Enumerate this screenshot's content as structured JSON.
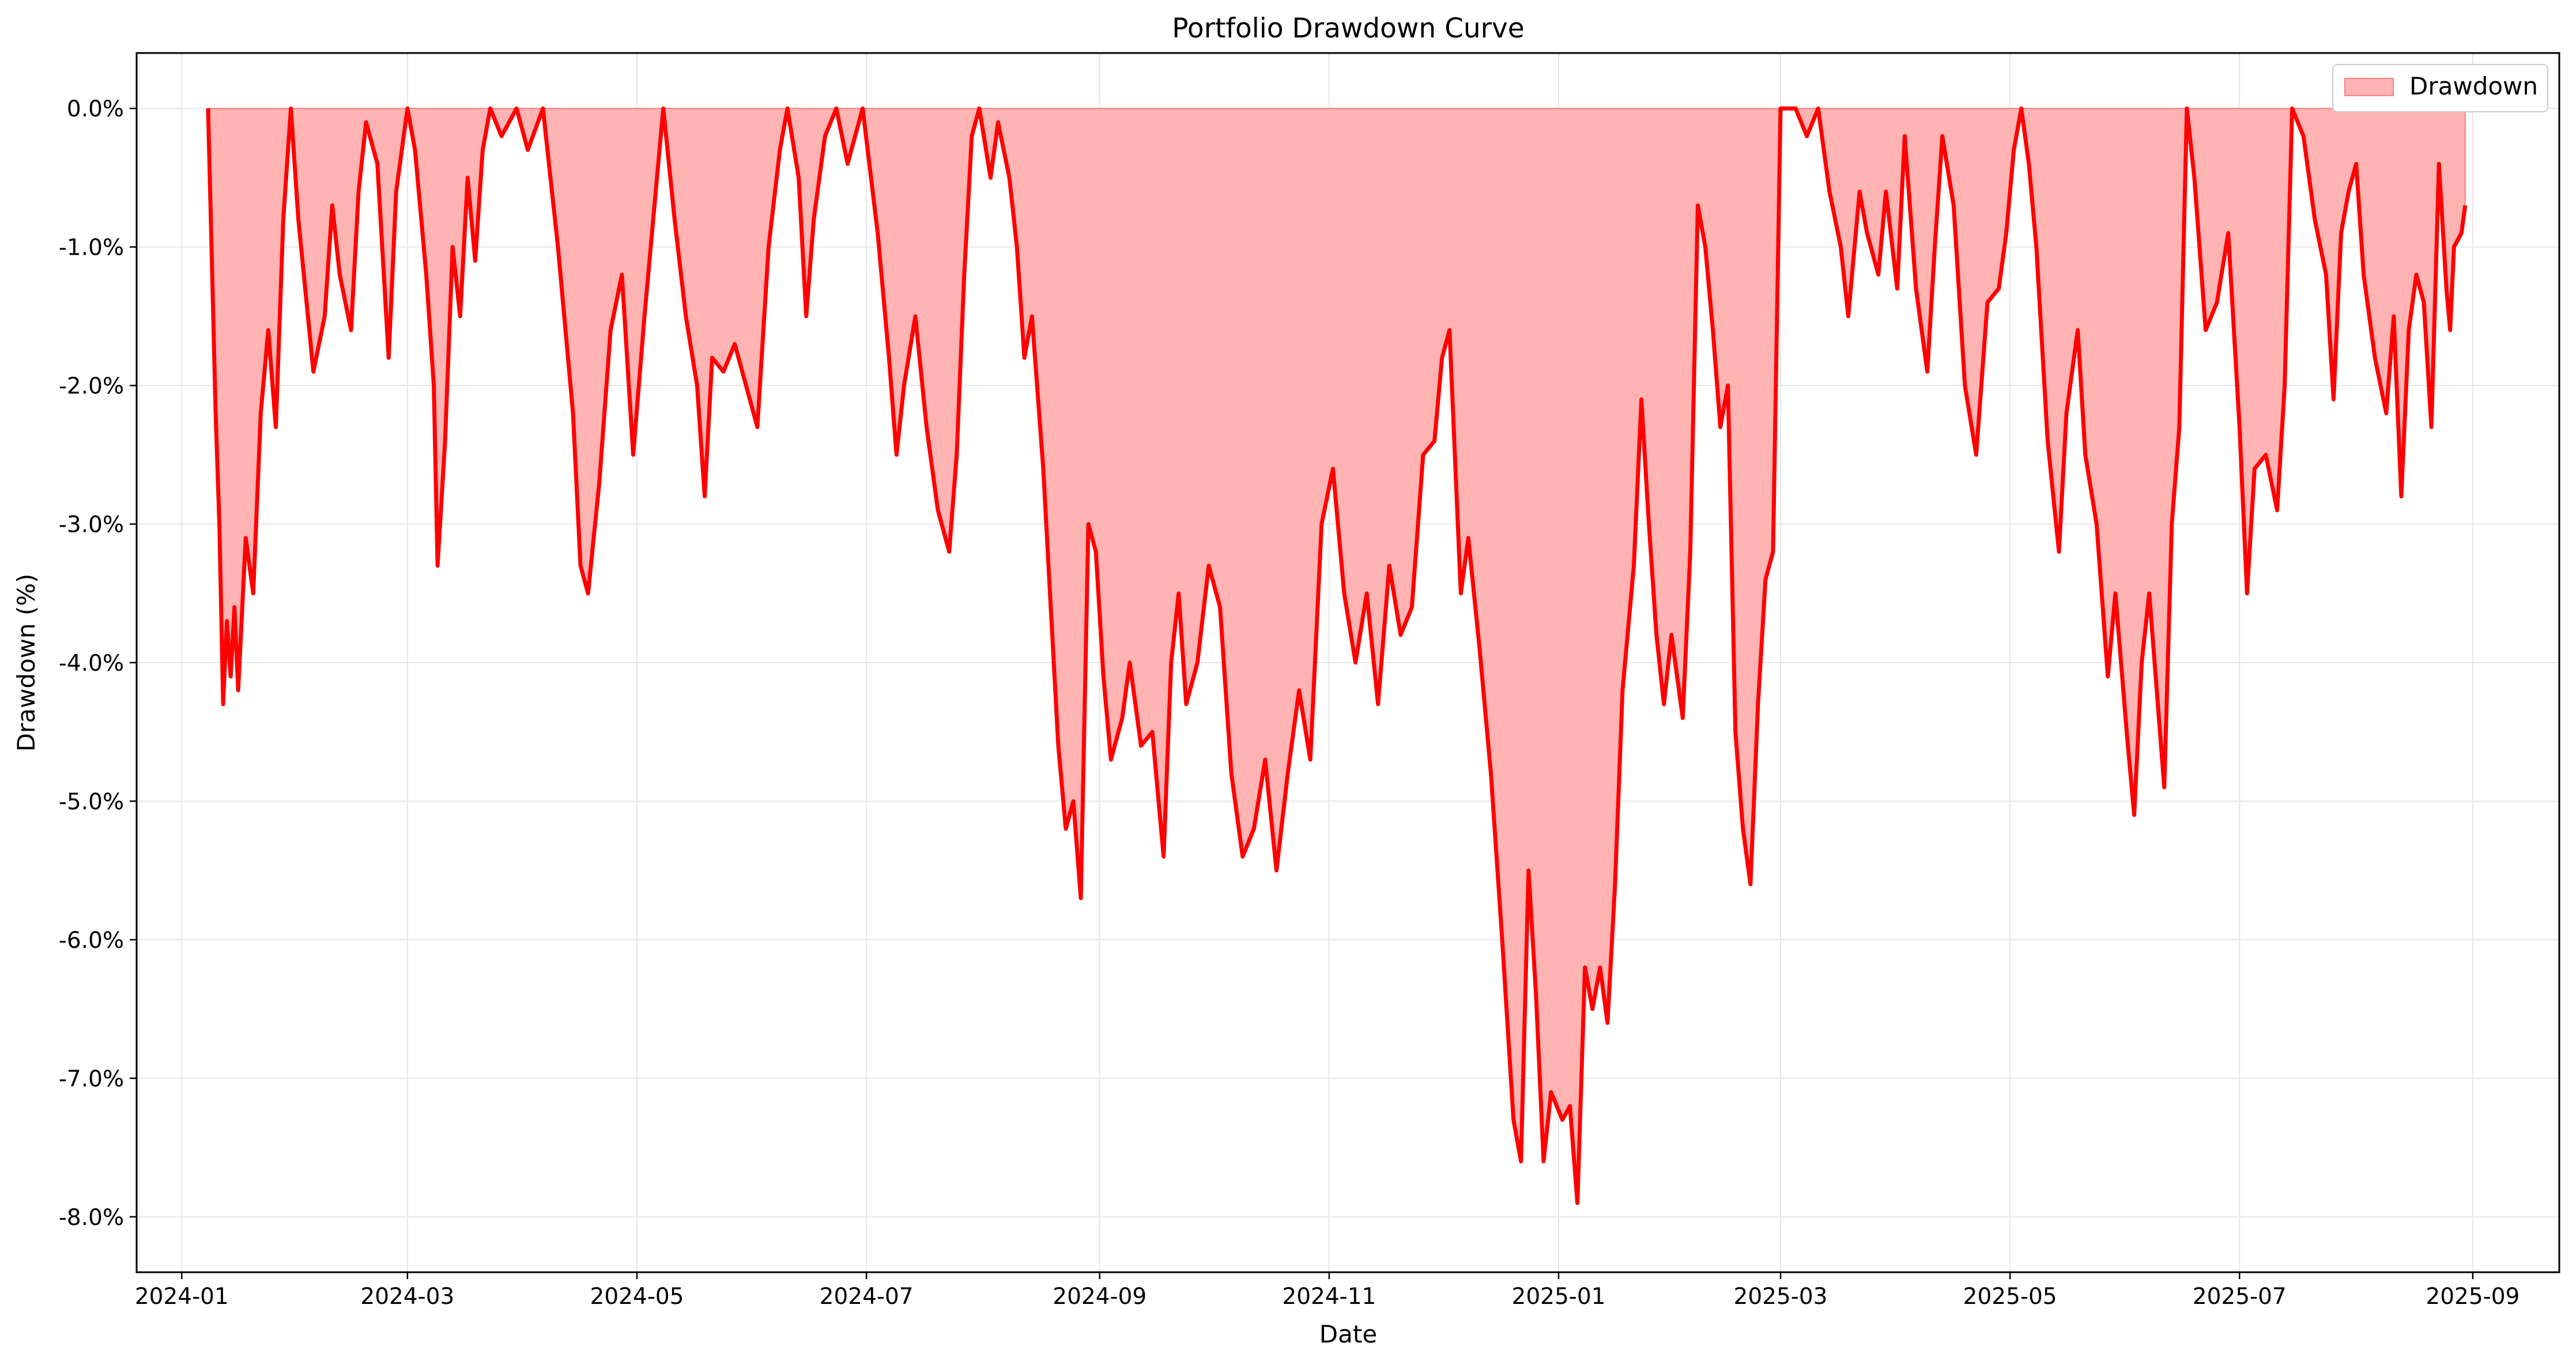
{
  "chart_data": {
    "type": "area",
    "title": "Portfolio Drawdown Curve",
    "xlabel": "Date",
    "ylabel": "Drawdown (%)",
    "grid": true,
    "legend": {
      "placement": "top-right",
      "entries": [
        "Drawdown"
      ]
    },
    "colors": {
      "line": "#ff0000",
      "fill": "#ffb3b3",
      "legend_patch": "#ffb3b3",
      "legend_edge": "#ff7f7f",
      "grid": "#e6e6e6"
    },
    "xlim": [
      "2023-12-20",
      "2025-09-24"
    ],
    "ylim": [
      -8.4,
      0.4
    ],
    "x_ticks": [
      {
        "date": "2024-01-01",
        "label": "2024-01"
      },
      {
        "date": "2024-03-01",
        "label": "2024-03"
      },
      {
        "date": "2024-05-01",
        "label": "2024-05"
      },
      {
        "date": "2024-07-01",
        "label": "2024-07"
      },
      {
        "date": "2024-09-01",
        "label": "2024-09"
      },
      {
        "date": "2024-11-01",
        "label": "2024-11"
      },
      {
        "date": "2025-01-01",
        "label": "2025-01"
      },
      {
        "date": "2025-03-01",
        "label": "2025-03"
      },
      {
        "date": "2025-05-01",
        "label": "2025-05"
      },
      {
        "date": "2025-07-01",
        "label": "2025-07"
      },
      {
        "date": "2025-09-01",
        "label": "2025-09"
      }
    ],
    "y_ticks": [
      {
        "value": 0,
        "label": "0.0%"
      },
      {
        "value": -1,
        "label": "-1.0%"
      },
      {
        "value": -2,
        "label": "-2.0%"
      },
      {
        "value": -3,
        "label": "-3.0%"
      },
      {
        "value": -4,
        "label": "-4.0%"
      },
      {
        "value": -5,
        "label": "-5.0%"
      },
      {
        "value": -6,
        "label": "-6.0%"
      },
      {
        "value": -7,
        "label": "-7.0%"
      },
      {
        "value": -8,
        "label": "-8.0%"
      }
    ],
    "series": [
      {
        "name": "Drawdown",
        "points": [
          [
            "2024-01-08",
            0.0
          ],
          [
            "2024-01-10",
            -2.2
          ],
          [
            "2024-01-11",
            -3.0
          ],
          [
            "2024-01-12",
            -4.3
          ],
          [
            "2024-01-13",
            -3.7
          ],
          [
            "2024-01-14",
            -4.1
          ],
          [
            "2024-01-15",
            -3.6
          ],
          [
            "2024-01-16",
            -4.2
          ],
          [
            "2024-01-18",
            -3.1
          ],
          [
            "2024-01-20",
            -3.5
          ],
          [
            "2024-01-22",
            -2.2
          ],
          [
            "2024-01-24",
            -1.6
          ],
          [
            "2024-01-26",
            -2.3
          ],
          [
            "2024-01-28",
            -0.8
          ],
          [
            "2024-01-30",
            0.0
          ],
          [
            "2024-02-01",
            -0.8
          ],
          [
            "2024-02-05",
            -1.9
          ],
          [
            "2024-02-08",
            -1.5
          ],
          [
            "2024-02-10",
            -0.7
          ],
          [
            "2024-02-12",
            -1.2
          ],
          [
            "2024-02-15",
            -1.6
          ],
          [
            "2024-02-17",
            -0.6
          ],
          [
            "2024-02-19",
            -0.1
          ],
          [
            "2024-02-22",
            -0.4
          ],
          [
            "2024-02-25",
            -1.8
          ],
          [
            "2024-02-27",
            -0.6
          ],
          [
            "2024-03-01",
            0.0
          ],
          [
            "2024-03-03",
            -0.3
          ],
          [
            "2024-03-06",
            -1.2
          ],
          [
            "2024-03-08",
            -2.0
          ],
          [
            "2024-03-09",
            -3.3
          ],
          [
            "2024-03-11",
            -2.4
          ],
          [
            "2024-03-13",
            -1.0
          ],
          [
            "2024-03-15",
            -1.5
          ],
          [
            "2024-03-17",
            -0.5
          ],
          [
            "2024-03-19",
            -1.1
          ],
          [
            "2024-03-21",
            -0.3
          ],
          [
            "2024-03-23",
            0.0
          ],
          [
            "2024-03-26",
            -0.2
          ],
          [
            "2024-03-30",
            0.0
          ],
          [
            "2024-04-02",
            -0.3
          ],
          [
            "2024-04-06",
            0.0
          ],
          [
            "2024-04-10",
            -1.0
          ],
          [
            "2024-04-14",
            -2.2
          ],
          [
            "2024-04-16",
            -3.3
          ],
          [
            "2024-04-18",
            -3.5
          ],
          [
            "2024-04-21",
            -2.7
          ],
          [
            "2024-04-24",
            -1.6
          ],
          [
            "2024-04-27",
            -1.2
          ],
          [
            "2024-04-30",
            -2.5
          ],
          [
            "2024-05-03",
            -1.5
          ],
          [
            "2024-05-06",
            -0.6
          ],
          [
            "2024-05-08",
            0.0
          ],
          [
            "2024-05-11",
            -0.8
          ],
          [
            "2024-05-14",
            -1.5
          ],
          [
            "2024-05-17",
            -2.0
          ],
          [
            "2024-05-19",
            -2.8
          ],
          [
            "2024-05-21",
            -1.8
          ],
          [
            "2024-05-24",
            -1.9
          ],
          [
            "2024-05-27",
            -1.7
          ],
          [
            "2024-05-30",
            -2.0
          ],
          [
            "2024-06-02",
            -2.3
          ],
          [
            "2024-06-05",
            -1.0
          ],
          [
            "2024-06-08",
            -0.3
          ],
          [
            "2024-06-10",
            0.0
          ],
          [
            "2024-06-13",
            -0.5
          ],
          [
            "2024-06-15",
            -1.5
          ],
          [
            "2024-06-17",
            -0.8
          ],
          [
            "2024-06-20",
            -0.2
          ],
          [
            "2024-06-23",
            0.0
          ],
          [
            "2024-06-26",
            -0.4
          ],
          [
            "2024-06-30",
            0.0
          ],
          [
            "2024-07-04",
            -0.9
          ],
          [
            "2024-07-07",
            -1.8
          ],
          [
            "2024-07-09",
            -2.5
          ],
          [
            "2024-07-11",
            -2.0
          ],
          [
            "2024-07-14",
            -1.5
          ],
          [
            "2024-07-17",
            -2.3
          ],
          [
            "2024-07-20",
            -2.9
          ],
          [
            "2024-07-23",
            -3.2
          ],
          [
            "2024-07-25",
            -2.5
          ],
          [
            "2024-07-27",
            -1.2
          ],
          [
            "2024-07-29",
            -0.2
          ],
          [
            "2024-07-31",
            0.0
          ],
          [
            "2024-08-03",
            -0.5
          ],
          [
            "2024-08-05",
            -0.1
          ],
          [
            "2024-08-08",
            -0.5
          ],
          [
            "2024-08-10",
            -1.0
          ],
          [
            "2024-08-12",
            -1.8
          ],
          [
            "2024-08-14",
            -1.5
          ],
          [
            "2024-08-17",
            -2.6
          ],
          [
            "2024-08-19",
            -3.6
          ],
          [
            "2024-08-21",
            -4.6
          ],
          [
            "2024-08-23",
            -5.2
          ],
          [
            "2024-08-25",
            -5.0
          ],
          [
            "2024-08-27",
            -5.7
          ],
          [
            "2024-08-29",
            -3.0
          ],
          [
            "2024-08-31",
            -3.2
          ],
          [
            "2024-09-02",
            -4.1
          ],
          [
            "2024-09-04",
            -4.7
          ],
          [
            "2024-09-07",
            -4.4
          ],
          [
            "2024-09-09",
            -4.0
          ],
          [
            "2024-09-12",
            -4.6
          ],
          [
            "2024-09-15",
            -4.5
          ],
          [
            "2024-09-18",
            -5.4
          ],
          [
            "2024-09-20",
            -4.0
          ],
          [
            "2024-09-22",
            -3.5
          ],
          [
            "2024-09-24",
            -4.3
          ],
          [
            "2024-09-27",
            -4.0
          ],
          [
            "2024-09-30",
            -3.3
          ],
          [
            "2024-10-03",
            -3.6
          ],
          [
            "2024-10-06",
            -4.8
          ],
          [
            "2024-10-09",
            -5.4
          ],
          [
            "2024-10-12",
            -5.2
          ],
          [
            "2024-10-15",
            -4.7
          ],
          [
            "2024-10-18",
            -5.5
          ],
          [
            "2024-10-21",
            -4.8
          ],
          [
            "2024-10-24",
            -4.2
          ],
          [
            "2024-10-27",
            -4.7
          ],
          [
            "2024-10-30",
            -3.0
          ],
          [
            "2024-11-02",
            -2.6
          ],
          [
            "2024-11-05",
            -3.5
          ],
          [
            "2024-11-08",
            -4.0
          ],
          [
            "2024-11-11",
            -3.5
          ],
          [
            "2024-11-14",
            -4.3
          ],
          [
            "2024-11-17",
            -3.3
          ],
          [
            "2024-11-20",
            -3.8
          ],
          [
            "2024-11-23",
            -3.6
          ],
          [
            "2024-11-26",
            -2.5
          ],
          [
            "2024-11-29",
            -2.4
          ],
          [
            "2024-12-01",
            -1.8
          ],
          [
            "2024-12-03",
            -1.6
          ],
          [
            "2024-12-06",
            -3.5
          ],
          [
            "2024-12-08",
            -3.1
          ],
          [
            "2024-12-11",
            -3.9
          ],
          [
            "2024-12-14",
            -4.8
          ],
          [
            "2024-12-17",
            -6.0
          ],
          [
            "2024-12-20",
            -7.3
          ],
          [
            "2024-12-22",
            -7.6
          ],
          [
            "2024-12-24",
            -5.5
          ],
          [
            "2024-12-26",
            -6.4
          ],
          [
            "2024-12-28",
            -7.6
          ],
          [
            "2024-12-30",
            -7.1
          ],
          [
            "2025-01-02",
            -7.3
          ],
          [
            "2025-01-04",
            -7.2
          ],
          [
            "2025-01-06",
            -7.9
          ],
          [
            "2025-01-08",
            -6.2
          ],
          [
            "2025-01-10",
            -6.5
          ],
          [
            "2025-01-12",
            -6.2
          ],
          [
            "2025-01-14",
            -6.6
          ],
          [
            "2025-01-16",
            -5.6
          ],
          [
            "2025-01-18",
            -4.2
          ],
          [
            "2025-01-21",
            -3.3
          ],
          [
            "2025-01-23",
            -2.1
          ],
          [
            "2025-01-25",
            -3.0
          ],
          [
            "2025-01-27",
            -3.8
          ],
          [
            "2025-01-29",
            -4.3
          ],
          [
            "2025-01-31",
            -3.8
          ],
          [
            "2025-02-03",
            -4.4
          ],
          [
            "2025-02-05",
            -3.2
          ],
          [
            "2025-02-07",
            -0.7
          ],
          [
            "2025-02-09",
            -1.0
          ],
          [
            "2025-02-11",
            -1.6
          ],
          [
            "2025-02-13",
            -2.3
          ],
          [
            "2025-02-15",
            -2.0
          ],
          [
            "2025-02-17",
            -4.5
          ],
          [
            "2025-02-19",
            -5.2
          ],
          [
            "2025-02-21",
            -5.6
          ],
          [
            "2025-02-23",
            -4.3
          ],
          [
            "2025-02-25",
            -3.4
          ],
          [
            "2025-02-27",
            -3.2
          ],
          [
            "2025-03-01",
            0.0
          ],
          [
            "2025-03-05",
            0.0
          ],
          [
            "2025-03-08",
            -0.2
          ],
          [
            "2025-03-11",
            0.0
          ],
          [
            "2025-03-14",
            -0.6
          ],
          [
            "2025-03-17",
            -1.0
          ],
          [
            "2025-03-19",
            -1.5
          ],
          [
            "2025-03-22",
            -0.6
          ],
          [
            "2025-03-24",
            -0.9
          ],
          [
            "2025-03-27",
            -1.2
          ],
          [
            "2025-03-29",
            -0.6
          ],
          [
            "2025-04-01",
            -1.3
          ],
          [
            "2025-04-03",
            -0.2
          ],
          [
            "2025-04-06",
            -1.3
          ],
          [
            "2025-04-09",
            -1.9
          ],
          [
            "2025-04-11",
            -1.0
          ],
          [
            "2025-04-13",
            -0.2
          ],
          [
            "2025-04-16",
            -0.7
          ],
          [
            "2025-04-19",
            -2.0
          ],
          [
            "2025-04-22",
            -2.5
          ],
          [
            "2025-04-25",
            -1.4
          ],
          [
            "2025-04-28",
            -1.3
          ],
          [
            "2025-04-30",
            -0.9
          ],
          [
            "2025-05-02",
            -0.3
          ],
          [
            "2025-05-04",
            0.0
          ],
          [
            "2025-05-06",
            -0.4
          ],
          [
            "2025-05-08",
            -1.0
          ],
          [
            "2025-05-11",
            -2.4
          ],
          [
            "2025-05-14",
            -3.2
          ],
          [
            "2025-05-16",
            -2.2
          ],
          [
            "2025-05-19",
            -1.6
          ],
          [
            "2025-05-21",
            -2.5
          ],
          [
            "2025-05-24",
            -3.0
          ],
          [
            "2025-05-27",
            -4.1
          ],
          [
            "2025-05-29",
            -3.5
          ],
          [
            "2025-06-01",
            -4.5
          ],
          [
            "2025-06-03",
            -5.1
          ],
          [
            "2025-06-05",
            -4.0
          ],
          [
            "2025-06-07",
            -3.5
          ],
          [
            "2025-06-09",
            -4.2
          ],
          [
            "2025-06-11",
            -4.9
          ],
          [
            "2025-06-13",
            -3.0
          ],
          [
            "2025-06-15",
            -2.3
          ],
          [
            "2025-06-17",
            0.0
          ],
          [
            "2025-06-19",
            -0.5
          ],
          [
            "2025-06-22",
            -1.6
          ],
          [
            "2025-06-25",
            -1.4
          ],
          [
            "2025-06-28",
            -0.9
          ],
          [
            "2025-07-01",
            -2.3
          ],
          [
            "2025-07-03",
            -3.5
          ],
          [
            "2025-07-05",
            -2.6
          ],
          [
            "2025-07-08",
            -2.5
          ],
          [
            "2025-07-11",
            -2.9
          ],
          [
            "2025-07-13",
            -2.0
          ],
          [
            "2025-07-15",
            0.0
          ],
          [
            "2025-07-18",
            -0.2
          ],
          [
            "2025-07-21",
            -0.8
          ],
          [
            "2025-07-24",
            -1.2
          ],
          [
            "2025-07-26",
            -2.1
          ],
          [
            "2025-07-28",
            -0.9
          ],
          [
            "2025-07-30",
            -0.6
          ],
          [
            "2025-08-01",
            -0.4
          ],
          [
            "2025-08-03",
            -1.2
          ],
          [
            "2025-08-06",
            -1.8
          ],
          [
            "2025-08-09",
            -2.2
          ],
          [
            "2025-08-11",
            -1.5
          ],
          [
            "2025-08-13",
            -2.8
          ],
          [
            "2025-08-15",
            -1.6
          ],
          [
            "2025-08-17",
            -1.2
          ],
          [
            "2025-08-19",
            -1.4
          ],
          [
            "2025-08-21",
            -2.3
          ],
          [
            "2025-08-23",
            -0.4
          ],
          [
            "2025-08-25",
            -1.3
          ],
          [
            "2025-08-26",
            -1.6
          ],
          [
            "2025-08-27",
            -1.0
          ],
          [
            "2025-08-29",
            -0.9
          ],
          [
            "2025-08-30",
            -0.7
          ]
        ]
      }
    ]
  }
}
